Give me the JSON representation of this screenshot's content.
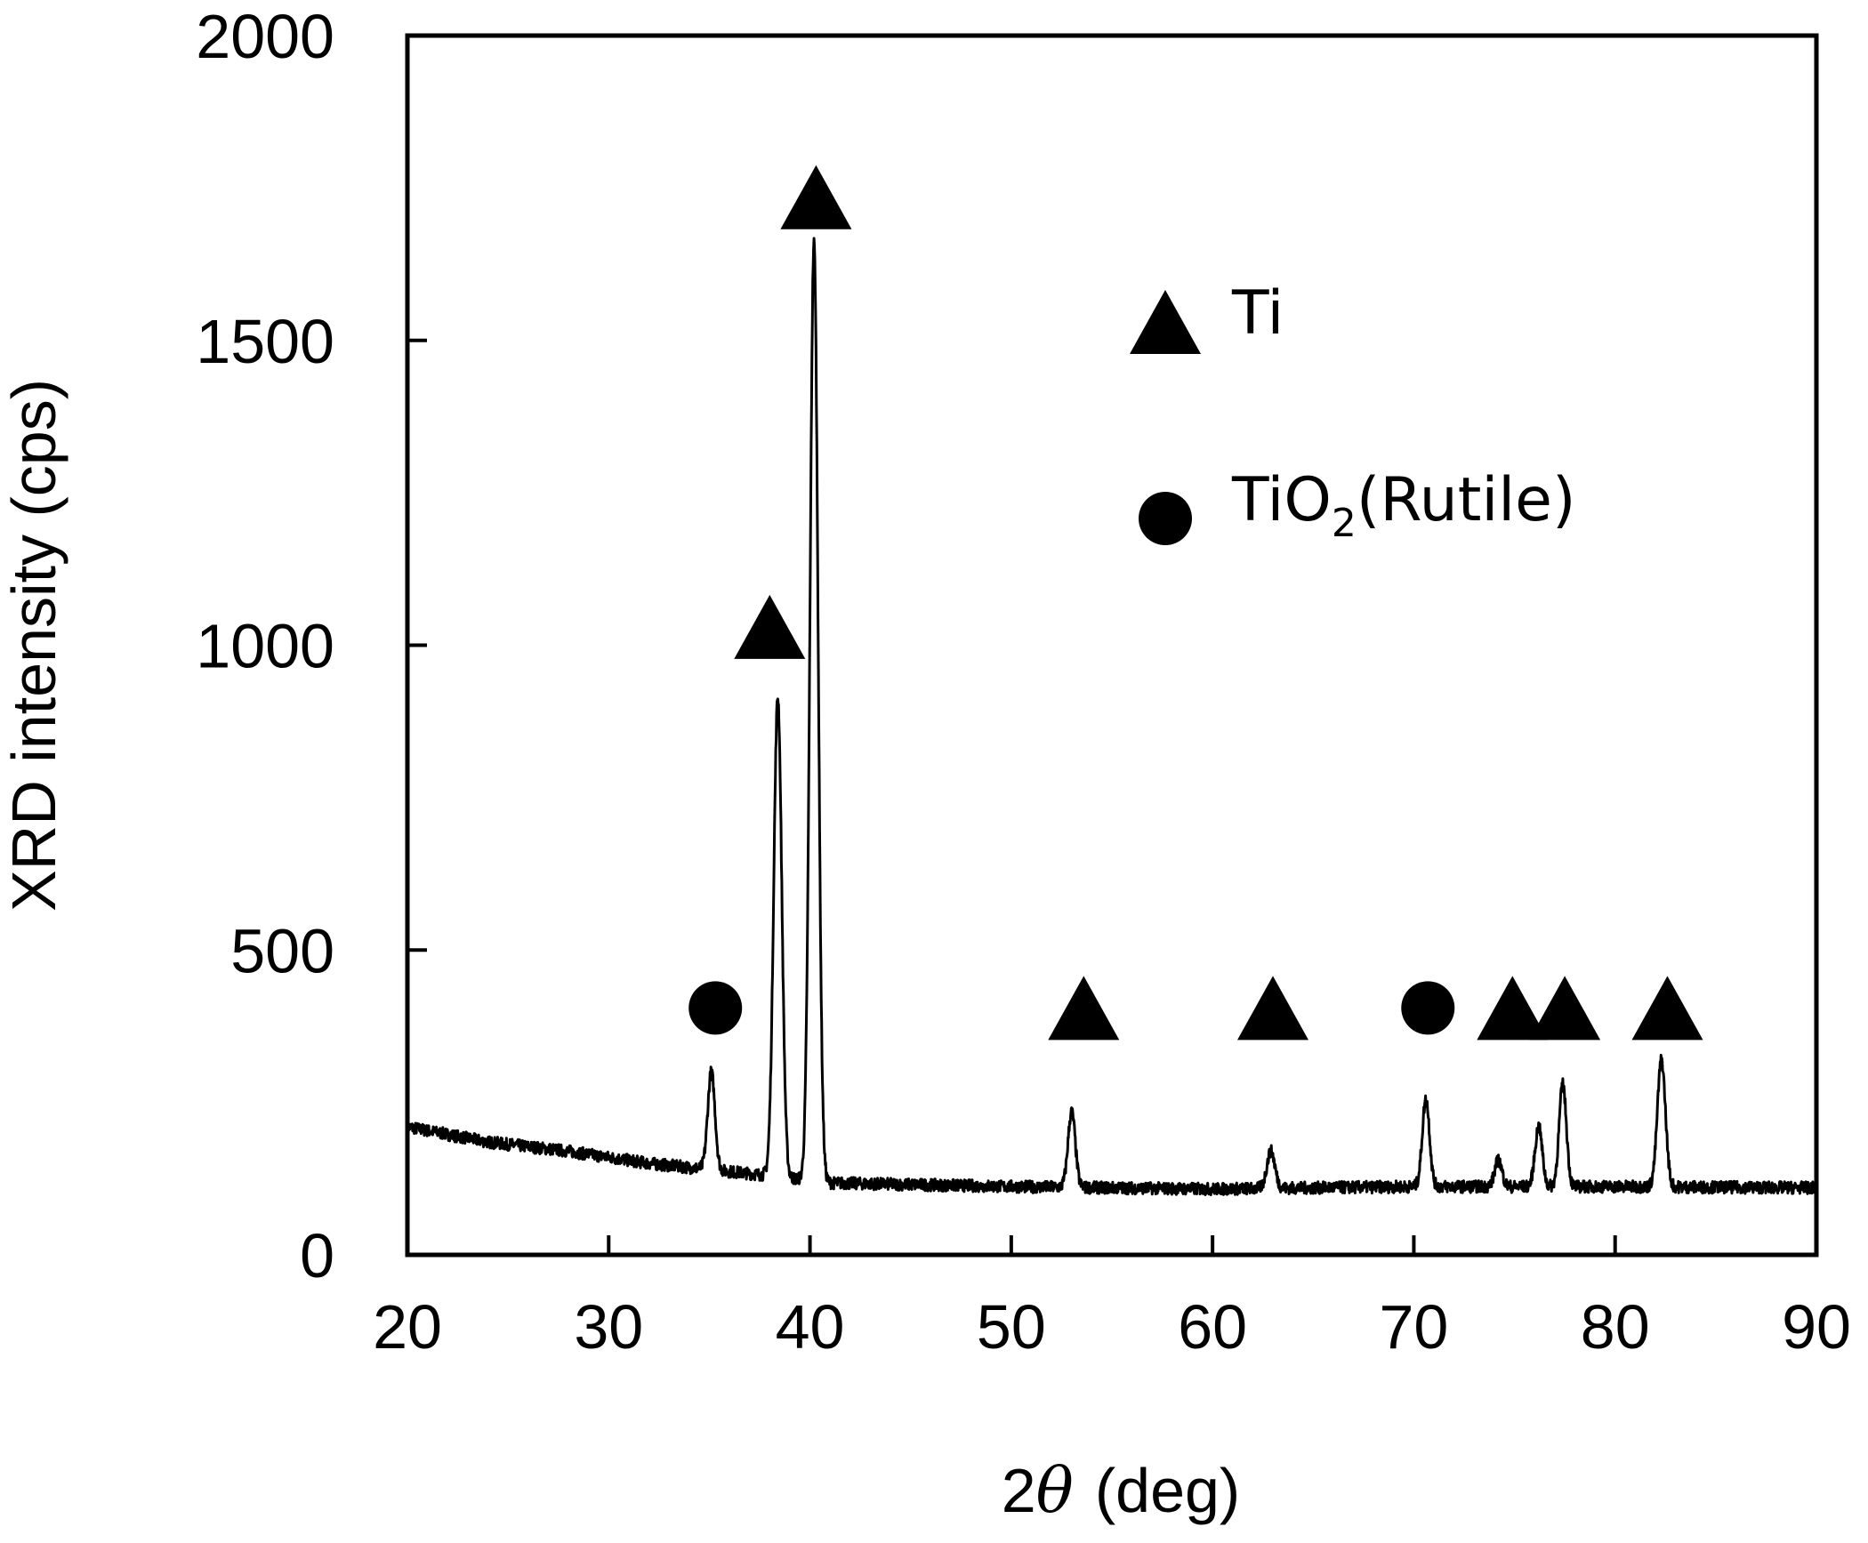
{
  "chart_data": {
    "type": "line",
    "xlabel": {
      "prefix": "2",
      "symbol": "θ",
      "suffix": "(deg)"
    },
    "ylabel": "XRD intensity (cps)",
    "xlim": [
      20,
      90
    ],
    "ylim": [
      0,
      2000
    ],
    "xticks": [
      20,
      30,
      40,
      50,
      60,
      70,
      80,
      90
    ],
    "yticks": [
      0,
      500,
      1000,
      1500,
      2000
    ],
    "grid": false,
    "legend": {
      "position": "top-right",
      "entries": [
        {
          "marker": "triangle",
          "label": "Ti",
          "sub": "",
          "tail": ""
        },
        {
          "marker": "circle",
          "label": "TiO",
          "sub": "2",
          "tail": "(Rutile)"
        }
      ]
    },
    "baseline": [
      [
        20,
        210
      ],
      [
        24,
        185
      ],
      [
        28,
        170
      ],
      [
        32,
        150
      ],
      [
        35,
        140
      ],
      [
        38,
        130
      ],
      [
        41,
        118
      ],
      [
        50,
        112
      ],
      [
        60,
        108
      ],
      [
        70,
        112
      ],
      [
        80,
        112
      ],
      [
        90,
        110
      ]
    ],
    "noise_amplitude": 10,
    "peaks": [
      {
        "x": 35.1,
        "height": 300,
        "width": 0.18
      },
      {
        "x": 38.4,
        "height": 915,
        "width": 0.2
      },
      {
        "x": 40.2,
        "height": 1660,
        "width": 0.2
      },
      {
        "x": 53.0,
        "height": 235,
        "width": 0.18
      },
      {
        "x": 62.9,
        "height": 170,
        "width": 0.2
      },
      {
        "x": 70.6,
        "height": 255,
        "width": 0.18
      },
      {
        "x": 74.2,
        "height": 155,
        "width": 0.18
      },
      {
        "x": 76.2,
        "height": 210,
        "width": 0.18
      },
      {
        "x": 77.4,
        "height": 280,
        "width": 0.18
      },
      {
        "x": 82.3,
        "height": 320,
        "width": 0.2
      }
    ],
    "markers": [
      {
        "type": "circle",
        "x": 35.3,
        "y": 405
      },
      {
        "type": "triangle",
        "x": 38.0,
        "y": 1030
      },
      {
        "type": "triangle",
        "x": 40.3,
        "y": 1735
      },
      {
        "type": "triangle",
        "x": 53.6,
        "y": 405
      },
      {
        "type": "triangle",
        "x": 63.0,
        "y": 405
      },
      {
        "type": "circle",
        "x": 70.7,
        "y": 405
      },
      {
        "type": "triangle",
        "x": 74.9,
        "y": 405
      },
      {
        "type": "triangle",
        "x": 77.5,
        "y": 405
      },
      {
        "type": "triangle",
        "x": 82.6,
        "y": 405
      }
    ]
  }
}
